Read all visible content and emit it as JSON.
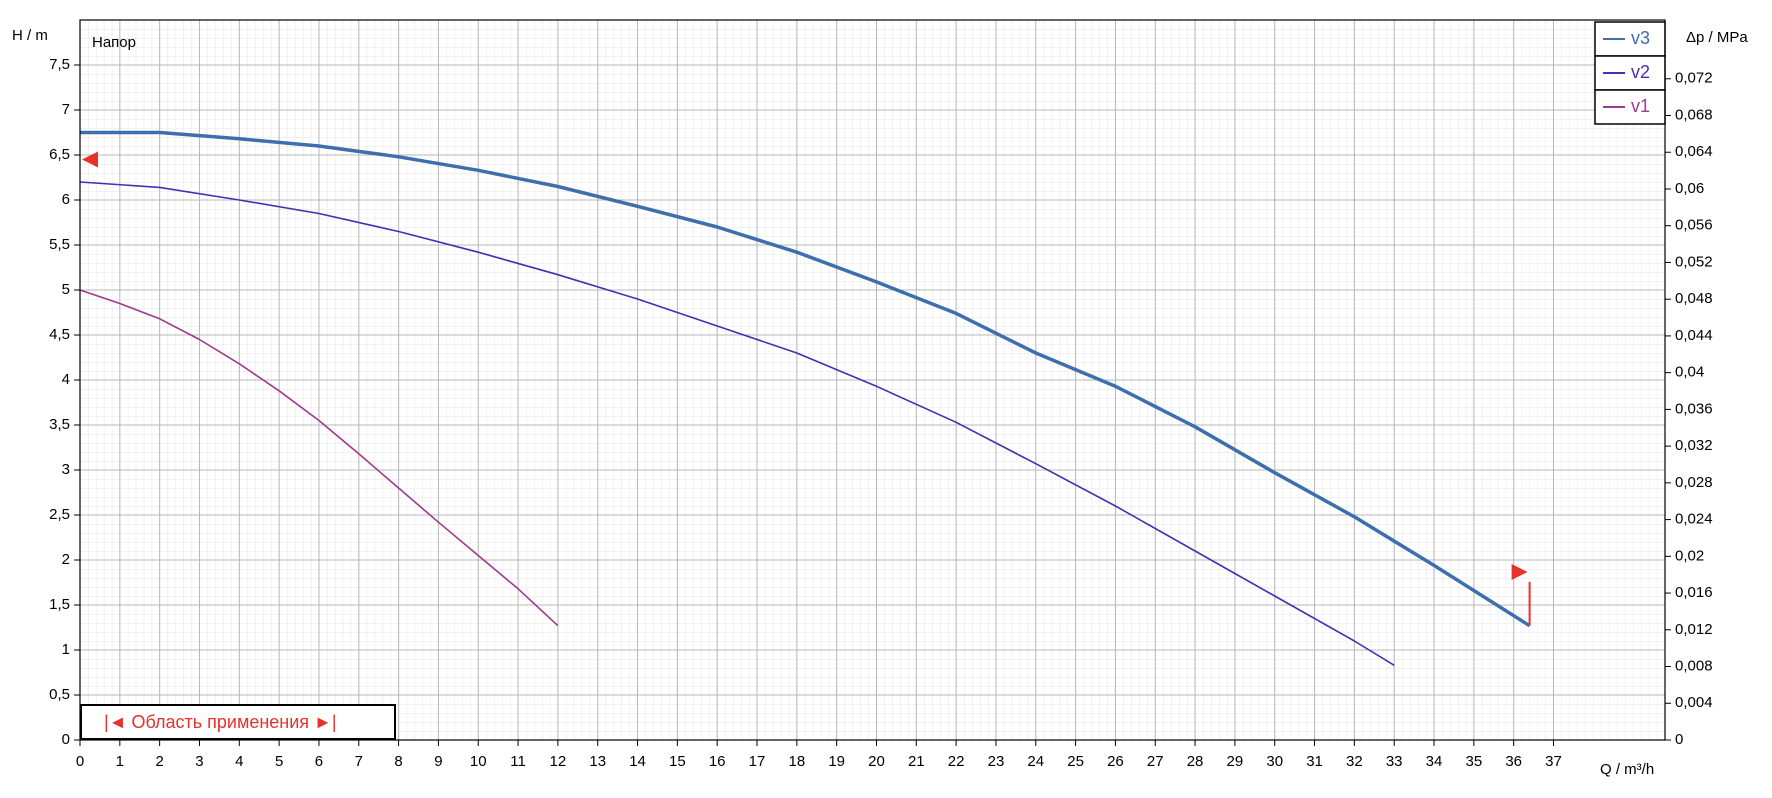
{
  "chart_data": {
    "type": "line",
    "y_label": "H / m",
    "y2_label": "Δp / MPa",
    "x_label": "Q / m³/h",
    "annotations": [
      "Напор",
      "|◄ Область применения ►|"
    ],
    "series": [
      {
        "name": "v3",
        "color": "#3d6fae",
        "x": [
          0,
          2,
          4,
          6,
          8,
          10,
          12,
          14,
          16,
          18,
          20,
          22,
          24,
          26,
          28,
          30,
          32,
          34,
          36.4
        ],
        "values": [
          6.75,
          6.75,
          6.68,
          6.6,
          6.48,
          6.33,
          6.15,
          5.93,
          5.7,
          5.42,
          5.09,
          4.74,
          4.3,
          3.93,
          3.48,
          2.97,
          2.48,
          1.94,
          1.27
        ]
      },
      {
        "name": "v2",
        "color": "#4a2cb4",
        "x": [
          0,
          2,
          4,
          6,
          8,
          10,
          12,
          14,
          16,
          18,
          20,
          22,
          24,
          26,
          28,
          30,
          32,
          33
        ],
        "values": [
          6.2,
          6.14,
          6.0,
          5.85,
          5.65,
          5.42,
          5.17,
          4.9,
          4.6,
          4.3,
          3.93,
          3.53,
          3.07,
          2.6,
          2.1,
          1.6,
          1.1,
          0.83
        ]
      },
      {
        "name": "v1",
        "color": "#a0398c",
        "x": [
          0,
          1,
          2,
          3,
          4,
          5,
          6,
          7,
          8,
          9,
          10,
          11,
          12
        ],
        "values": [
          5.0,
          4.85,
          4.68,
          4.45,
          4.18,
          3.88,
          3.55,
          3.18,
          2.8,
          2.42,
          2.05,
          1.68,
          1.27
        ]
      }
    ],
    "xlim": [
      0,
      39.8
    ],
    "ylim": [
      0,
      8
    ],
    "y2lim": [
      0,
      0.0784
    ],
    "xticks": [
      0,
      1,
      2,
      3,
      4,
      5,
      6,
      7,
      8,
      9,
      10,
      11,
      12,
      13,
      14,
      15,
      16,
      17,
      18,
      19,
      20,
      21,
      22,
      23,
      24,
      25,
      26,
      27,
      28,
      29,
      30,
      31,
      32,
      33,
      34,
      35,
      36,
      37
    ],
    "yticks": [
      0,
      {
        "value": 0.5,
        "label": "0,5"
      },
      1,
      {
        "value": 1.5,
        "label": "1,5"
      },
      2,
      {
        "value": 2.5,
        "label": "2,5"
      },
      3,
      {
        "value": 3.5,
        "label": "3,5"
      },
      4,
      {
        "value": 4.5,
        "label": "4,5"
      },
      5,
      {
        "value": 5.5,
        "label": "5,5"
      },
      6,
      {
        "value": 6.5,
        "label": "6,5"
      },
      7,
      {
        "value": 7.5,
        "label": "7,5"
      }
    ],
    "y2ticks": [
      0,
      {
        "value": 0.004,
        "label": "0,004"
      },
      {
        "value": 0.008,
        "label": "0,008"
      },
      {
        "value": 0.012,
        "label": "0,012"
      },
      {
        "value": 0.016,
        "label": "0,016"
      },
      {
        "value": 0.02,
        "label": "0,02"
      },
      {
        "value": 0.024,
        "label": "0,024"
      },
      {
        "value": 0.028,
        "label": "0,028"
      },
      {
        "value": 0.032,
        "label": "0,032"
      },
      {
        "value": 0.036,
        "label": "0,036"
      },
      {
        "value": 0.04,
        "label": "0,04"
      },
      {
        "value": 0.044,
        "label": "0,044"
      },
      {
        "value": 0.048,
        "label": "0,048"
      },
      {
        "value": 0.052,
        "label": "0,052"
      },
      {
        "value": 0.056,
        "label": "0,056"
      },
      {
        "value": 0.06,
        "label": "0,06"
      },
      {
        "value": 0.064,
        "label": "0,064"
      },
      {
        "value": 0.068,
        "label": "0,068"
      },
      {
        "value": 0.072,
        "label": "0,072"
      }
    ],
    "grid": true,
    "legend": "upper right"
  }
}
